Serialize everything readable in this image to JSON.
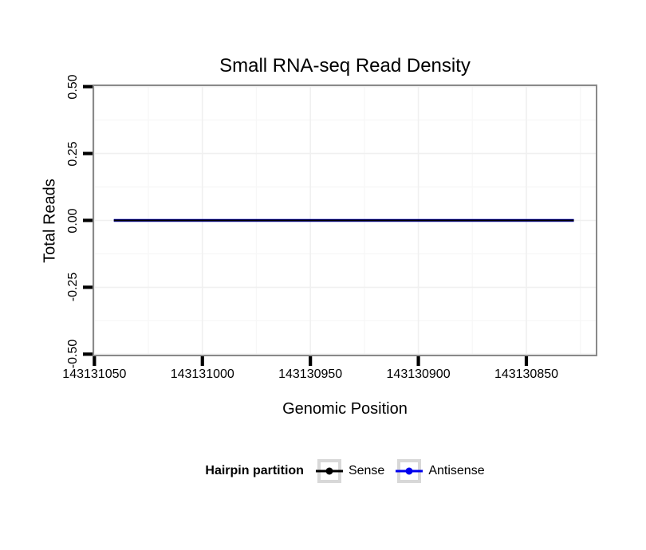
{
  "chart_data": {
    "type": "line",
    "title": "Small RNA-seq Read Density",
    "xlabel": "Genomic Position",
    "ylabel": "Total Reads",
    "grid": true,
    "x_axis": {
      "reversed": true,
      "range": [
        143131050.5,
        143130817.5
      ],
      "ticks": [
        {
          "value": 143131050,
          "label": "143131050"
        },
        {
          "value": 143131000,
          "label": "143131000"
        },
        {
          "value": 143130950,
          "label": "143130950"
        },
        {
          "value": 143130900,
          "label": "143130900"
        },
        {
          "value": 143130850,
          "label": "143130850"
        }
      ],
      "minor_gridlines": [
        143131025,
        143130975,
        143130925,
        143130875,
        143130825
      ]
    },
    "y_axis": {
      "range": [
        -0.505,
        0.505
      ],
      "ticks": [
        {
          "value": 0.5,
          "label": "0.50"
        },
        {
          "value": 0.25,
          "label": "0.25"
        },
        {
          "value": 0.0,
          "label": "0.00"
        },
        {
          "value": -0.25,
          "label": "-0.25"
        },
        {
          "value": -0.5,
          "label": "-0.50"
        }
      ],
      "minor_gridlines": [
        0.375,
        0.125,
        -0.125,
        -0.375
      ]
    },
    "series": [
      {
        "name": "Sense",
        "color": "#000000",
        "points": [
          [
            143131041,
            0
          ],
          [
            143130828,
            0
          ]
        ]
      },
      {
        "name": "Antisense",
        "color": "#0000EE",
        "points": [
          [
            143131041,
            0
          ],
          [
            143130828,
            0
          ]
        ]
      }
    ],
    "legend": {
      "title": "Hairpin partition",
      "position": "bottom",
      "entries": [
        {
          "label": "Sense",
          "color": "#000000"
        },
        {
          "label": "Antisense",
          "color": "#0000EE"
        }
      ]
    },
    "colors": {
      "background": "#ffffff",
      "panel_border": "#898989",
      "major_grid": "#f0f0f0",
      "minor_grid": "#f7f7f7",
      "tick": "#000000",
      "legend_key_frame": "#d8d8d8"
    }
  }
}
